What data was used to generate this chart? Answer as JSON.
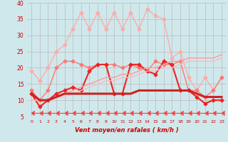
{
  "xlabel": "Vent moyen/en rafales ( km/h )",
  "background_color": "#cfe8ec",
  "grid_color": "#c0b8b8",
  "x": [
    0,
    1,
    2,
    3,
    4,
    5,
    6,
    7,
    8,
    9,
    10,
    11,
    12,
    13,
    14,
    15,
    16,
    17,
    18,
    19,
    20,
    21,
    22,
    23
  ],
  "ylim": [
    5,
    40
  ],
  "yticks": [
    5,
    10,
    15,
    20,
    25,
    30,
    35,
    40
  ],
  "figsize": [
    3.2,
    2.0
  ],
  "dpi": 100,
  "series": [
    {
      "color": "#ffaaaa",
      "lw": 1.0,
      "marker": "D",
      "ms": 2.5,
      "data": [
        19,
        16,
        20,
        25,
        27,
        32,
        37,
        32,
        37,
        32,
        37,
        32,
        37,
        32,
        38,
        36,
        35,
        23,
        25,
        17,
        13,
        17,
        13,
        17
      ]
    },
    {
      "color": "#ff7777",
      "lw": 1.0,
      "marker": "D",
      "ms": 2.5,
      "data": [
        13,
        10,
        13,
        20,
        22,
        22,
        21,
        20,
        21,
        21,
        21,
        20,
        21,
        20,
        19,
        22,
        21,
        21,
        22,
        13,
        13,
        11,
        13,
        17
      ]
    },
    {
      "color": "#ee2222",
      "lw": 1.5,
      "marker": "D",
      "ms": 2.5,
      "data": [
        12,
        8,
        10,
        12,
        13,
        14,
        13,
        19,
        21,
        21,
        12,
        12,
        21,
        21,
        19,
        18,
        22,
        21,
        13,
        13,
        11,
        9,
        10,
        10
      ]
    },
    {
      "color": "#ff9999",
      "lw": 1.0,
      "marker": null,
      "ms": 0,
      "data": [
        10,
        10,
        10,
        11,
        12,
        13,
        14,
        15,
        16,
        17,
        17,
        18,
        18,
        19,
        20,
        20,
        21,
        22,
        22,
        23,
        23,
        23,
        23,
        24
      ]
    },
    {
      "color": "#ffbbbb",
      "lw": 1.0,
      "marker": null,
      "ms": 0,
      "data": [
        10,
        10,
        10,
        11,
        11,
        12,
        13,
        14,
        15,
        16,
        16,
        17,
        17,
        18,
        19,
        19,
        20,
        20,
        21,
        22,
        22,
        22,
        22,
        23
      ]
    },
    {
      "color": "#cc2222",
      "lw": 2.2,
      "marker": null,
      "ms": 0,
      "data": [
        12,
        10,
        10,
        11,
        12,
        12,
        12,
        12,
        12,
        12,
        12,
        12,
        12,
        13,
        13,
        13,
        13,
        13,
        13,
        13,
        12,
        11,
        11,
        11
      ]
    },
    {
      "color": "#ee4444",
      "lw": 0.8,
      "marker": "arrow",
      "ms": 4,
      "data": [
        6,
        6,
        6,
        6,
        6,
        6,
        6,
        6,
        6,
        6,
        6,
        6,
        6,
        6,
        6,
        6,
        6,
        6,
        6,
        6,
        6,
        6,
        6,
        6
      ]
    }
  ]
}
